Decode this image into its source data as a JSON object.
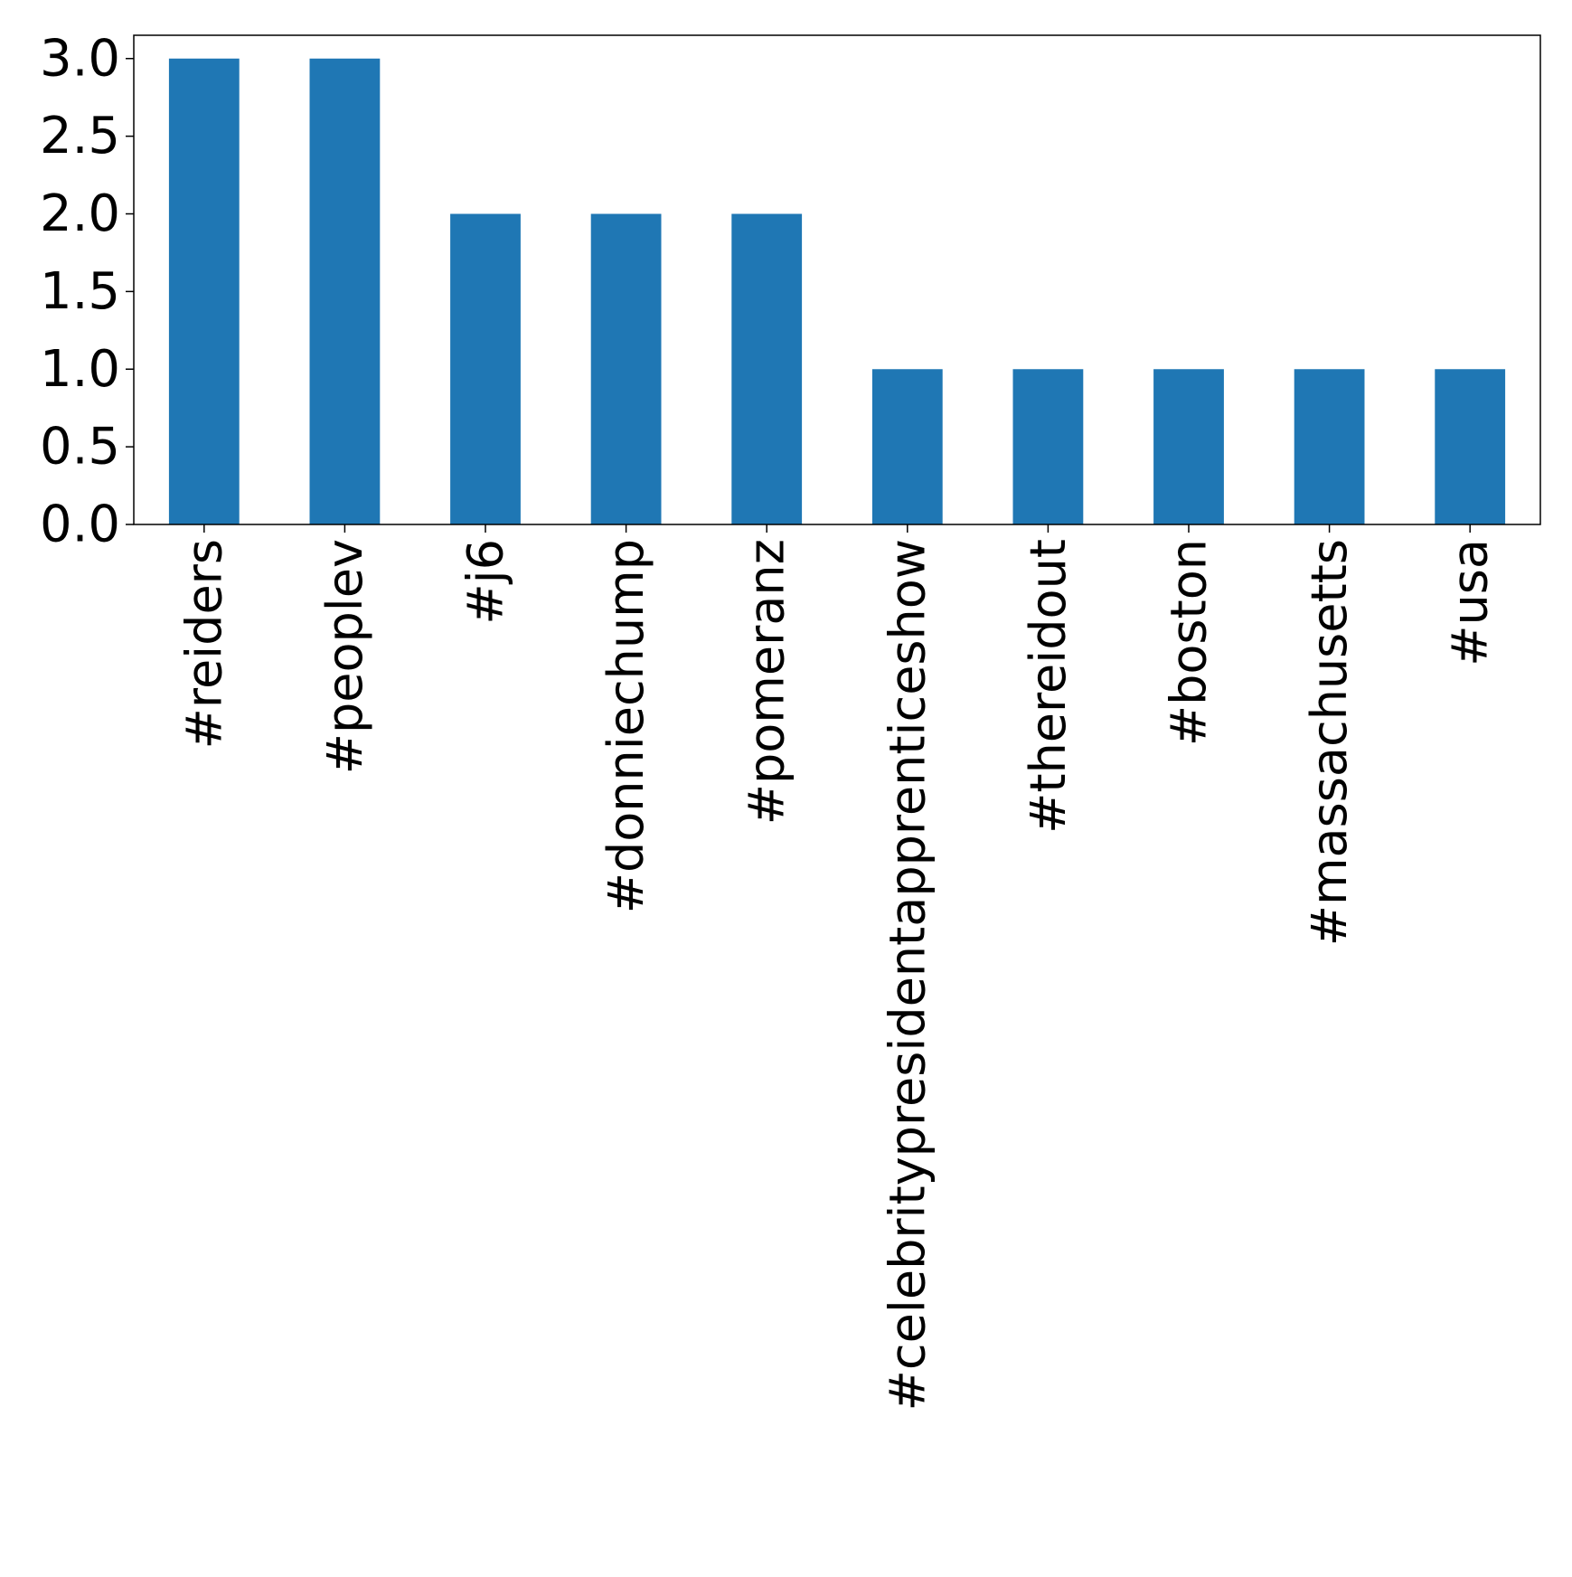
{
  "chart_data": {
    "type": "bar",
    "title": "",
    "xlabel": "",
    "ylabel": "",
    "categories": [
      "#reiders",
      "#peoplev",
      "#j6",
      "#donniechump",
      "#pomeranz",
      "#celebritypresidentapprenticeshow",
      "#thereidout",
      "#boston",
      "#massachusetts",
      "#usa"
    ],
    "values": [
      3,
      3,
      2,
      2,
      2,
      1,
      1,
      1,
      1,
      1
    ],
    "ylim": [
      0,
      3.15
    ],
    "yticks": [
      0.0,
      0.5,
      1.0,
      1.5,
      2.0,
      2.5,
      3.0
    ],
    "ytick_labels": [
      "0.0",
      "0.5",
      "1.0",
      "1.5",
      "2.0",
      "2.5",
      "3.0"
    ],
    "x_tick_rotation": "vertical",
    "grid": false,
    "legend": "none",
    "bar_color": "#1f77b4"
  }
}
